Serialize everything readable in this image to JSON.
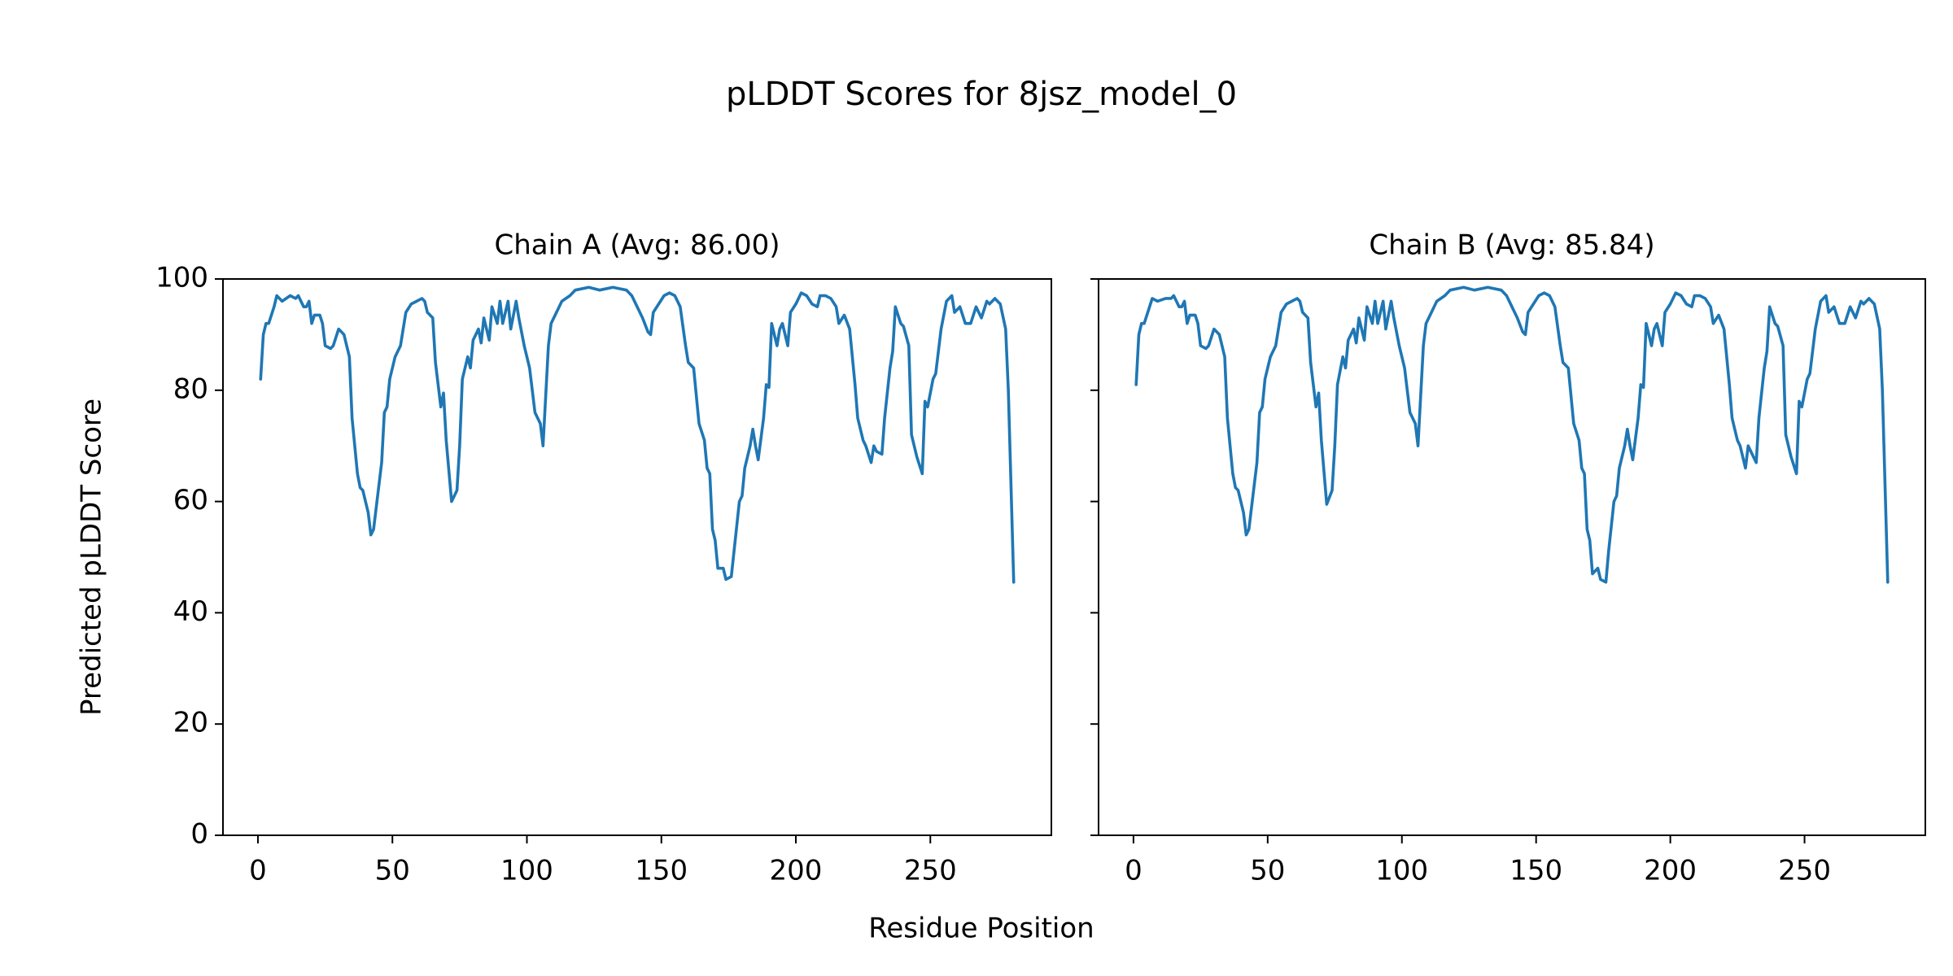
{
  "title": "pLDDT Scores for 8jsz_model_0",
  "xlabel": "Residue Position",
  "chart_data": [
    {
      "type": "line",
      "title": "Chain A (Avg: 86.00)",
      "ylabel": "Predicted pLDDT Score",
      "x": [
        1,
        2,
        3,
        4,
        6,
        7,
        9,
        12,
        14,
        15,
        17,
        18,
        19,
        20,
        21,
        23,
        24,
        25,
        27,
        28,
        30,
        32,
        34,
        35,
        37,
        38,
        39,
        41,
        42,
        43,
        44,
        46,
        47,
        48,
        49,
        51,
        53,
        54,
        55,
        57,
        59,
        61,
        62,
        63,
        65,
        66,
        68,
        69,
        70,
        72,
        74,
        75,
        76,
        78,
        79,
        80,
        82,
        83,
        84,
        86,
        87,
        89,
        90,
        91,
        93,
        94,
        96,
        97,
        99,
        101,
        103,
        105,
        106,
        108,
        109,
        111,
        113,
        116,
        118,
        123,
        127,
        132,
        137,
        139,
        141,
        143,
        145,
        146,
        147,
        149,
        151,
        153,
        155,
        157,
        159,
        160,
        162,
        164,
        166,
        167,
        168,
        169,
        170,
        171,
        173,
        174,
        176,
        177,
        179,
        180,
        181,
        183,
        184,
        185,
        186,
        188,
        189,
        190,
        191,
        193,
        194,
        195,
        197,
        198,
        200,
        202,
        204,
        206,
        208,
        209,
        211,
        213,
        215,
        216,
        218,
        220,
        222,
        223,
        225,
        226,
        228,
        229,
        230,
        232,
        233,
        235,
        236,
        237,
        239,
        240,
        242,
        243,
        245,
        247,
        248,
        249,
        251,
        252,
        254,
        256,
        258,
        259,
        261,
        263,
        265,
        267,
        269,
        271,
        272,
        274,
        276,
        278,
        279,
        281
      ],
      "series": [
        {
          "name": "Chain A",
          "color": "#1f77b4",
          "values": [
            82,
            90,
            92,
            92,
            95,
            97,
            96,
            97,
            96.5,
            97,
            95,
            95,
            96,
            92,
            93.5,
            93.5,
            92,
            88,
            87.5,
            88,
            91,
            90,
            86,
            75,
            65,
            62.5,
            62,
            58,
            54,
            55,
            59,
            67,
            76,
            77,
            82,
            86,
            88,
            91,
            94,
            95.5,
            96,
            96.5,
            96,
            94,
            93,
            85,
            77,
            79.5,
            71,
            60,
            62,
            70,
            82,
            86,
            84,
            89,
            91,
            88.5,
            93,
            89,
            95,
            92,
            96,
            92,
            96,
            91,
            96,
            93,
            88,
            84,
            76,
            74,
            70,
            88,
            92,
            94,
            96,
            97,
            98,
            98.5,
            98,
            98.5,
            98,
            97,
            95,
            93,
            90.5,
            90,
            94,
            95.5,
            97,
            97.5,
            97,
            95,
            88,
            85,
            84,
            74,
            71,
            66,
            65,
            55,
            53,
            48,
            48,
            46,
            46.5,
            51,
            60,
            61,
            66,
            70,
            73,
            70,
            67.5,
            75,
            81,
            80.5,
            92,
            88,
            91,
            92,
            88,
            94,
            95.5,
            97.5,
            97,
            95.5,
            95,
            97,
            97,
            96.5,
            95,
            92,
            93.5,
            91,
            81,
            75,
            71,
            70,
            67,
            70,
            69,
            68.5,
            75,
            84,
            87,
            95,
            92,
            91.5,
            88,
            72,
            68,
            65,
            78,
            77,
            82,
            83,
            91,
            96,
            97,
            94,
            95,
            92,
            92,
            95,
            93,
            96,
            95.5,
            96.5,
            95.5,
            91,
            80,
            45.5
          ]
        }
      ],
      "xlim": [
        -13,
        295
      ],
      "ylim": [
        0,
        100
      ],
      "xticks": [
        0,
        50,
        100,
        150,
        200,
        250
      ],
      "yticks": [
        0,
        20,
        40,
        60,
        80,
        100
      ]
    },
    {
      "type": "line",
      "title": "Chain B (Avg: 85.84)",
      "x": [
        1,
        2,
        3,
        4,
        6,
        7,
        9,
        12,
        14,
        15,
        17,
        18,
        19,
        20,
        21,
        23,
        24,
        25,
        27,
        28,
        30,
        32,
        34,
        35,
        37,
        38,
        39,
        41,
        42,
        43,
        44,
        46,
        47,
        48,
        49,
        51,
        53,
        54,
        55,
        57,
        59,
        61,
        62,
        63,
        65,
        66,
        68,
        69,
        70,
        72,
        74,
        75,
        76,
        78,
        79,
        80,
        82,
        83,
        84,
        86,
        87,
        89,
        90,
        91,
        93,
        94,
        96,
        97,
        99,
        101,
        103,
        105,
        106,
        108,
        109,
        111,
        113,
        116,
        118,
        123,
        127,
        132,
        137,
        139,
        141,
        143,
        145,
        146,
        147,
        149,
        151,
        153,
        155,
        157,
        159,
        160,
        162,
        164,
        166,
        167,
        168,
        169,
        170,
        171,
        173,
        174,
        176,
        177,
        179,
        180,
        181,
        183,
        184,
        185,
        186,
        188,
        189,
        190,
        191,
        193,
        194,
        195,
        197,
        198,
        200,
        202,
        204,
        206,
        208,
        209,
        211,
        213,
        215,
        216,
        218,
        220,
        222,
        223,
        225,
        226,
        228,
        229,
        230,
        232,
        233,
        235,
        236,
        237,
        239,
        240,
        242,
        243,
        245,
        247,
        248,
        249,
        251,
        252,
        254,
        256,
        258,
        259,
        261,
        263,
        265,
        267,
        269,
        271,
        272,
        274,
        276,
        278,
        279,
        281
      ],
      "series": [
        {
          "name": "Chain B",
          "color": "#1f77b4",
          "values": [
            81,
            90,
            92,
            92,
            95,
            96.5,
            96,
            96.5,
            96.5,
            97,
            95,
            95,
            96,
            92,
            93.5,
            93.5,
            92,
            88,
            87.5,
            88,
            91,
            90,
            86,
            75,
            65,
            62.5,
            62,
            58,
            54,
            55,
            59,
            67,
            76,
            77,
            82,
            86,
            88,
            91,
            94,
            95.5,
            96,
            96.5,
            96,
            94,
            93,
            85,
            77,
            79.5,
            71,
            59.5,
            62,
            70,
            81,
            86,
            84,
            89,
            91,
            88.5,
            93,
            89,
            95,
            92,
            96,
            92,
            96,
            91,
            96,
            93,
            88,
            84,
            76,
            74,
            70,
            88,
            92,
            94,
            96,
            97,
            98,
            98.5,
            98,
            98.5,
            98,
            97,
            95,
            93,
            90.5,
            90,
            94,
            95.5,
            97,
            97.5,
            97,
            95,
            88,
            85,
            84,
            74,
            71,
            66,
            65,
            55,
            53,
            47,
            48,
            46,
            45.5,
            51,
            60,
            61,
            66,
            70,
            73,
            70,
            67.5,
            75,
            81,
            80.5,
            92,
            88,
            91,
            92,
            88,
            94,
            95.5,
            97.5,
            97,
            95.5,
            95,
            97,
            97,
            96.5,
            95,
            92,
            93.5,
            91,
            81,
            75,
            71,
            70,
            66,
            70,
            69,
            67,
            75,
            84,
            87,
            95,
            92,
            91.5,
            88,
            72,
            68,
            65,
            78,
            77,
            82,
            83,
            91,
            96,
            97,
            94,
            95,
            92,
            92,
            95,
            93,
            96,
            95.5,
            96.5,
            95.5,
            91,
            80,
            45.5
          ]
        }
      ],
      "xlim": [
        -13,
        295
      ],
      "ylim": [
        0,
        100
      ],
      "xticks": [
        0,
        50,
        100,
        150,
        200,
        250
      ],
      "yticks": [
        0,
        20,
        40,
        60,
        80,
        100
      ]
    }
  ]
}
